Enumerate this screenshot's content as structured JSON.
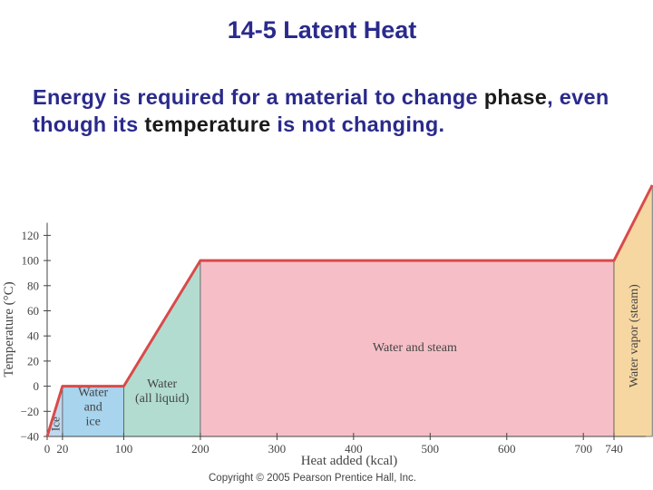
{
  "slide": {
    "title": "14-5 Latent Heat",
    "body_parts": [
      {
        "text": "Energy is required for a material to change ",
        "dark": false
      },
      {
        "text": "phase",
        "dark": true
      },
      {
        "text": ", even though its ",
        "dark": false
      },
      {
        "text": "temperature",
        "dark": true
      },
      {
        "text": " is not changing.",
        "dark": false
      }
    ],
    "copyright": "Copyright © 2005 Pearson Prentice Hall, Inc."
  },
  "chart_data": {
    "type": "line",
    "title": "",
    "xlabel": "Heat added (kcal)",
    "ylabel": "Temperature (°C)",
    "xlim": [
      0,
      790
    ],
    "ylim": [
      -40,
      130
    ],
    "x_ticks": [
      0,
      20,
      100,
      200,
      300,
      400,
      500,
      600,
      700,
      740
    ],
    "y_ticks": [
      -40,
      -20,
      0,
      20,
      40,
      60,
      80,
      100,
      120
    ],
    "series": [
      {
        "points": [
          [
            0,
            -40
          ],
          [
            20,
            0
          ],
          [
            100,
            0
          ],
          [
            200,
            100
          ],
          [
            740,
            100
          ],
          [
            790,
            160
          ]
        ]
      }
    ],
    "regions": [
      {
        "label": "Ice",
        "x0": 0,
        "x1": 20,
        "color": "#c0d8ee",
        "vertical": true
      },
      {
        "label": "Water and ice",
        "lines": [
          "Water",
          "and",
          "ice"
        ],
        "x0": 20,
        "x1": 100,
        "color": "#a8d4ee"
      },
      {
        "label": "Water (all liquid)",
        "lines": [
          "Water",
          "(all liquid)"
        ],
        "x0": 100,
        "x1": 200,
        "color": "#b2dccf"
      },
      {
        "label": "Water and steam",
        "x0": 200,
        "x1": 740,
        "color": "#f6bfc7"
      },
      {
        "label": "Water vapor (steam)",
        "x0": 740,
        "x1": 790,
        "color": "#f7d7a1",
        "vertical": true
      }
    ],
    "line_color": "#d94a4a"
  }
}
